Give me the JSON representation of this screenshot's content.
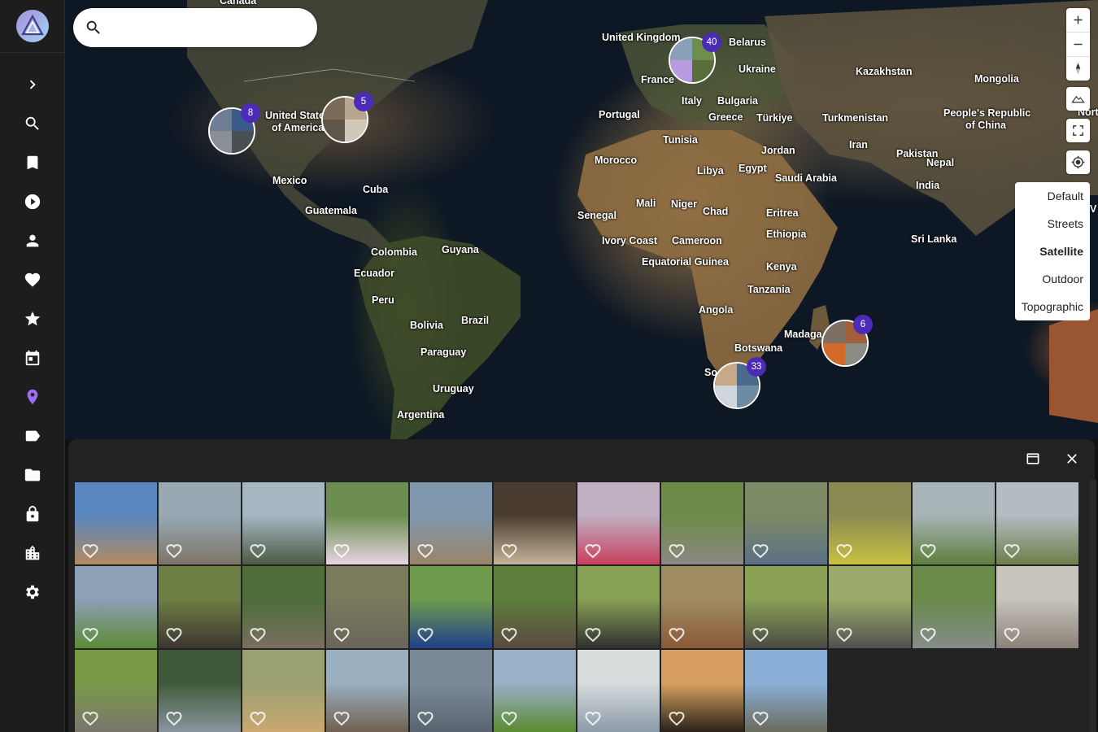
{
  "app": {
    "name": "Immich"
  },
  "sidebar": {
    "items": [
      {
        "name": "expand",
        "icon": "chevron-right-icon"
      },
      {
        "name": "search",
        "icon": "search-icon"
      },
      {
        "name": "bookmarks",
        "icon": "bookmark-icon"
      },
      {
        "name": "videos",
        "icon": "play-circle-icon"
      },
      {
        "name": "people",
        "icon": "person-icon"
      },
      {
        "name": "favorites",
        "icon": "heart-icon"
      },
      {
        "name": "starred",
        "icon": "star-icon"
      },
      {
        "name": "calendar",
        "icon": "calendar-icon"
      },
      {
        "name": "map",
        "icon": "map-pin-icon",
        "active": true,
        "color": "#9c6ef4"
      },
      {
        "name": "tags",
        "icon": "tag-icon"
      },
      {
        "name": "folders",
        "icon": "folder-icon"
      },
      {
        "name": "locked",
        "icon": "lock-icon"
      },
      {
        "name": "utilities",
        "icon": "city-icon"
      },
      {
        "name": "settings",
        "icon": "gear-icon"
      }
    ]
  },
  "search": {
    "placeholder": "",
    "value": ""
  },
  "map": {
    "labels": [
      {
        "text": "Canada"
      },
      {
        "text": "United States"
      },
      {
        "text": "of America"
      },
      {
        "text": "Mexico"
      },
      {
        "text": "Cuba"
      },
      {
        "text": "Guatemala"
      },
      {
        "text": "Guyana"
      },
      {
        "text": "Colombia"
      },
      {
        "text": "Ecuador"
      },
      {
        "text": "Peru"
      },
      {
        "text": "Brazil"
      },
      {
        "text": "Bolivia"
      },
      {
        "text": "Paraguay"
      },
      {
        "text": "Uruguay"
      },
      {
        "text": "Argentina"
      },
      {
        "text": "United Kingdom"
      },
      {
        "text": "Belarus"
      },
      {
        "text": "France"
      },
      {
        "text": "Ukraine"
      },
      {
        "text": "Italy"
      },
      {
        "text": "Bulgaria"
      },
      {
        "text": "Portugal"
      },
      {
        "text": "Greece"
      },
      {
        "text": "Türkiye"
      },
      {
        "text": "Kazakhstan"
      },
      {
        "text": "Mongolia"
      },
      {
        "text": "Turkmenistan"
      },
      {
        "text": "People's Republic"
      },
      {
        "text": "of China"
      },
      {
        "text": "Tunisia"
      },
      {
        "text": "Morocco"
      },
      {
        "text": "Libya"
      },
      {
        "text": "Egypt"
      },
      {
        "text": "Jordan"
      },
      {
        "text": "Iran"
      },
      {
        "text": "Pakistan"
      },
      {
        "text": "Nepal"
      },
      {
        "text": "Saudi Arabia"
      },
      {
        "text": "India"
      },
      {
        "text": "Mali"
      },
      {
        "text": "Niger"
      },
      {
        "text": "Chad"
      },
      {
        "text": "Senegal"
      },
      {
        "text": "Eritrea"
      },
      {
        "text": "Ethiopia"
      },
      {
        "text": "Ivory Coast"
      },
      {
        "text": "Cameroon"
      },
      {
        "text": "Sri Lanka"
      },
      {
        "text": "Equatorial Guinea"
      },
      {
        "text": "Kenya"
      },
      {
        "text": "Tanzania"
      },
      {
        "text": "Angola"
      },
      {
        "text": "Madaga"
      },
      {
        "text": "Botswana"
      },
      {
        "text": "So"
      },
      {
        "text": "North"
      },
      {
        "text": "V"
      }
    ],
    "clusters": [
      {
        "count": "8",
        "colors": [
          "#6d7f95",
          "#3b5a8c",
          "#8a8f97",
          "#4a4f55"
        ]
      },
      {
        "count": "5",
        "colors": [
          "#7b6a55",
          "#b8a78f",
          "#5e564b",
          "#d2c8b8"
        ]
      },
      {
        "count": "40",
        "colors": [
          "#8aa0b8",
          "#6e8f4a",
          "#b79adf",
          "#5a6e3b"
        ]
      },
      {
        "count": "6",
        "colors": [
          "#7d6f63",
          "#a35e3c",
          "#d46a2a",
          "#8b8b86"
        ]
      },
      {
        "count": "33",
        "colors": [
          "#c7a887",
          "#4d6a8a",
          "#cfd6dc",
          "#6f8ba3"
        ]
      }
    ],
    "style_menu": {
      "options": [
        "Default",
        "Streets",
        "Satellite",
        "Outdoor",
        "Topographic"
      ],
      "selected": "Satellite"
    }
  },
  "panel": {
    "photos": [
      {
        "colors": [
          "#5a86c0",
          "#b08a60"
        ]
      },
      {
        "colors": [
          "#98a9b4",
          "#7d7468"
        ]
      },
      {
        "colors": [
          "#a6b7c2",
          "#4c5a44"
        ]
      },
      {
        "colors": [
          "#6b8d4f",
          "#e8d4e3"
        ]
      },
      {
        "colors": [
          "#7f98ae",
          "#9a8468"
        ]
      },
      {
        "colors": [
          "#4a3c30",
          "#c7b49a"
        ]
      },
      {
        "colors": [
          "#c0b0c2",
          "#c84060"
        ]
      },
      {
        "colors": [
          "#6e8a48",
          "#8b8983"
        ]
      },
      {
        "colors": [
          "#7d8a66",
          "#5b7085"
        ]
      },
      {
        "colors": [
          "#8a8a52",
          "#c8c040"
        ]
      },
      {
        "colors": [
          "#a8b4b8",
          "#5f7e3c"
        ]
      },
      {
        "colors": [
          "#b3bcc2",
          "#6d7f49"
        ]
      },
      {
        "colors": [
          "#8ca0b6",
          "#5d8a38"
        ]
      },
      {
        "colors": [
          "#6e7f44",
          "#3c3630"
        ]
      },
      {
        "colors": [
          "#4e6d38",
          "#7a6e60"
        ]
      },
      {
        "colors": [
          "#7a7a5c",
          "#6a655a"
        ]
      },
      {
        "colors": [
          "#6f9c4c",
          "#1f3f8a"
        ]
      },
      {
        "colors": [
          "#5e7e3c",
          "#5a4a40"
        ]
      },
      {
        "colors": [
          "#88a054",
          "#2f2f2f"
        ]
      },
      {
        "colors": [
          "#a08c62",
          "#8a5a38"
        ]
      },
      {
        "colors": [
          "#8aa054",
          "#4a4a44"
        ]
      },
      {
        "colors": [
          "#9aaa68",
          "#505050"
        ]
      },
      {
        "colors": [
          "#6a8a4a",
          "#848c8a"
        ]
      },
      {
        "colors": [
          "#c8c4bc",
          "#8a8278"
        ]
      },
      {
        "colors": [
          "#7a9a48",
          "#7a756c"
        ]
      },
      {
        "colors": [
          "#3f5a3a",
          "#8a949e"
        ]
      },
      {
        "colors": [
          "#9aa070",
          "#caa870"
        ]
      },
      {
        "colors": [
          "#9ab0c0",
          "#706050"
        ]
      },
      {
        "colors": [
          "#7c8a98",
          "#5a6470"
        ]
      },
      {
        "colors": [
          "#9ab0c8",
          "#5a8a30"
        ]
      },
      {
        "colors": [
          "#d8dcdc",
          "#8a9aa8"
        ]
      },
      {
        "colors": [
          "#d8a060",
          "#2a2218"
        ]
      },
      {
        "colors": [
          "#8ab0d8",
          "#6a6a5a"
        ]
      }
    ]
  }
}
